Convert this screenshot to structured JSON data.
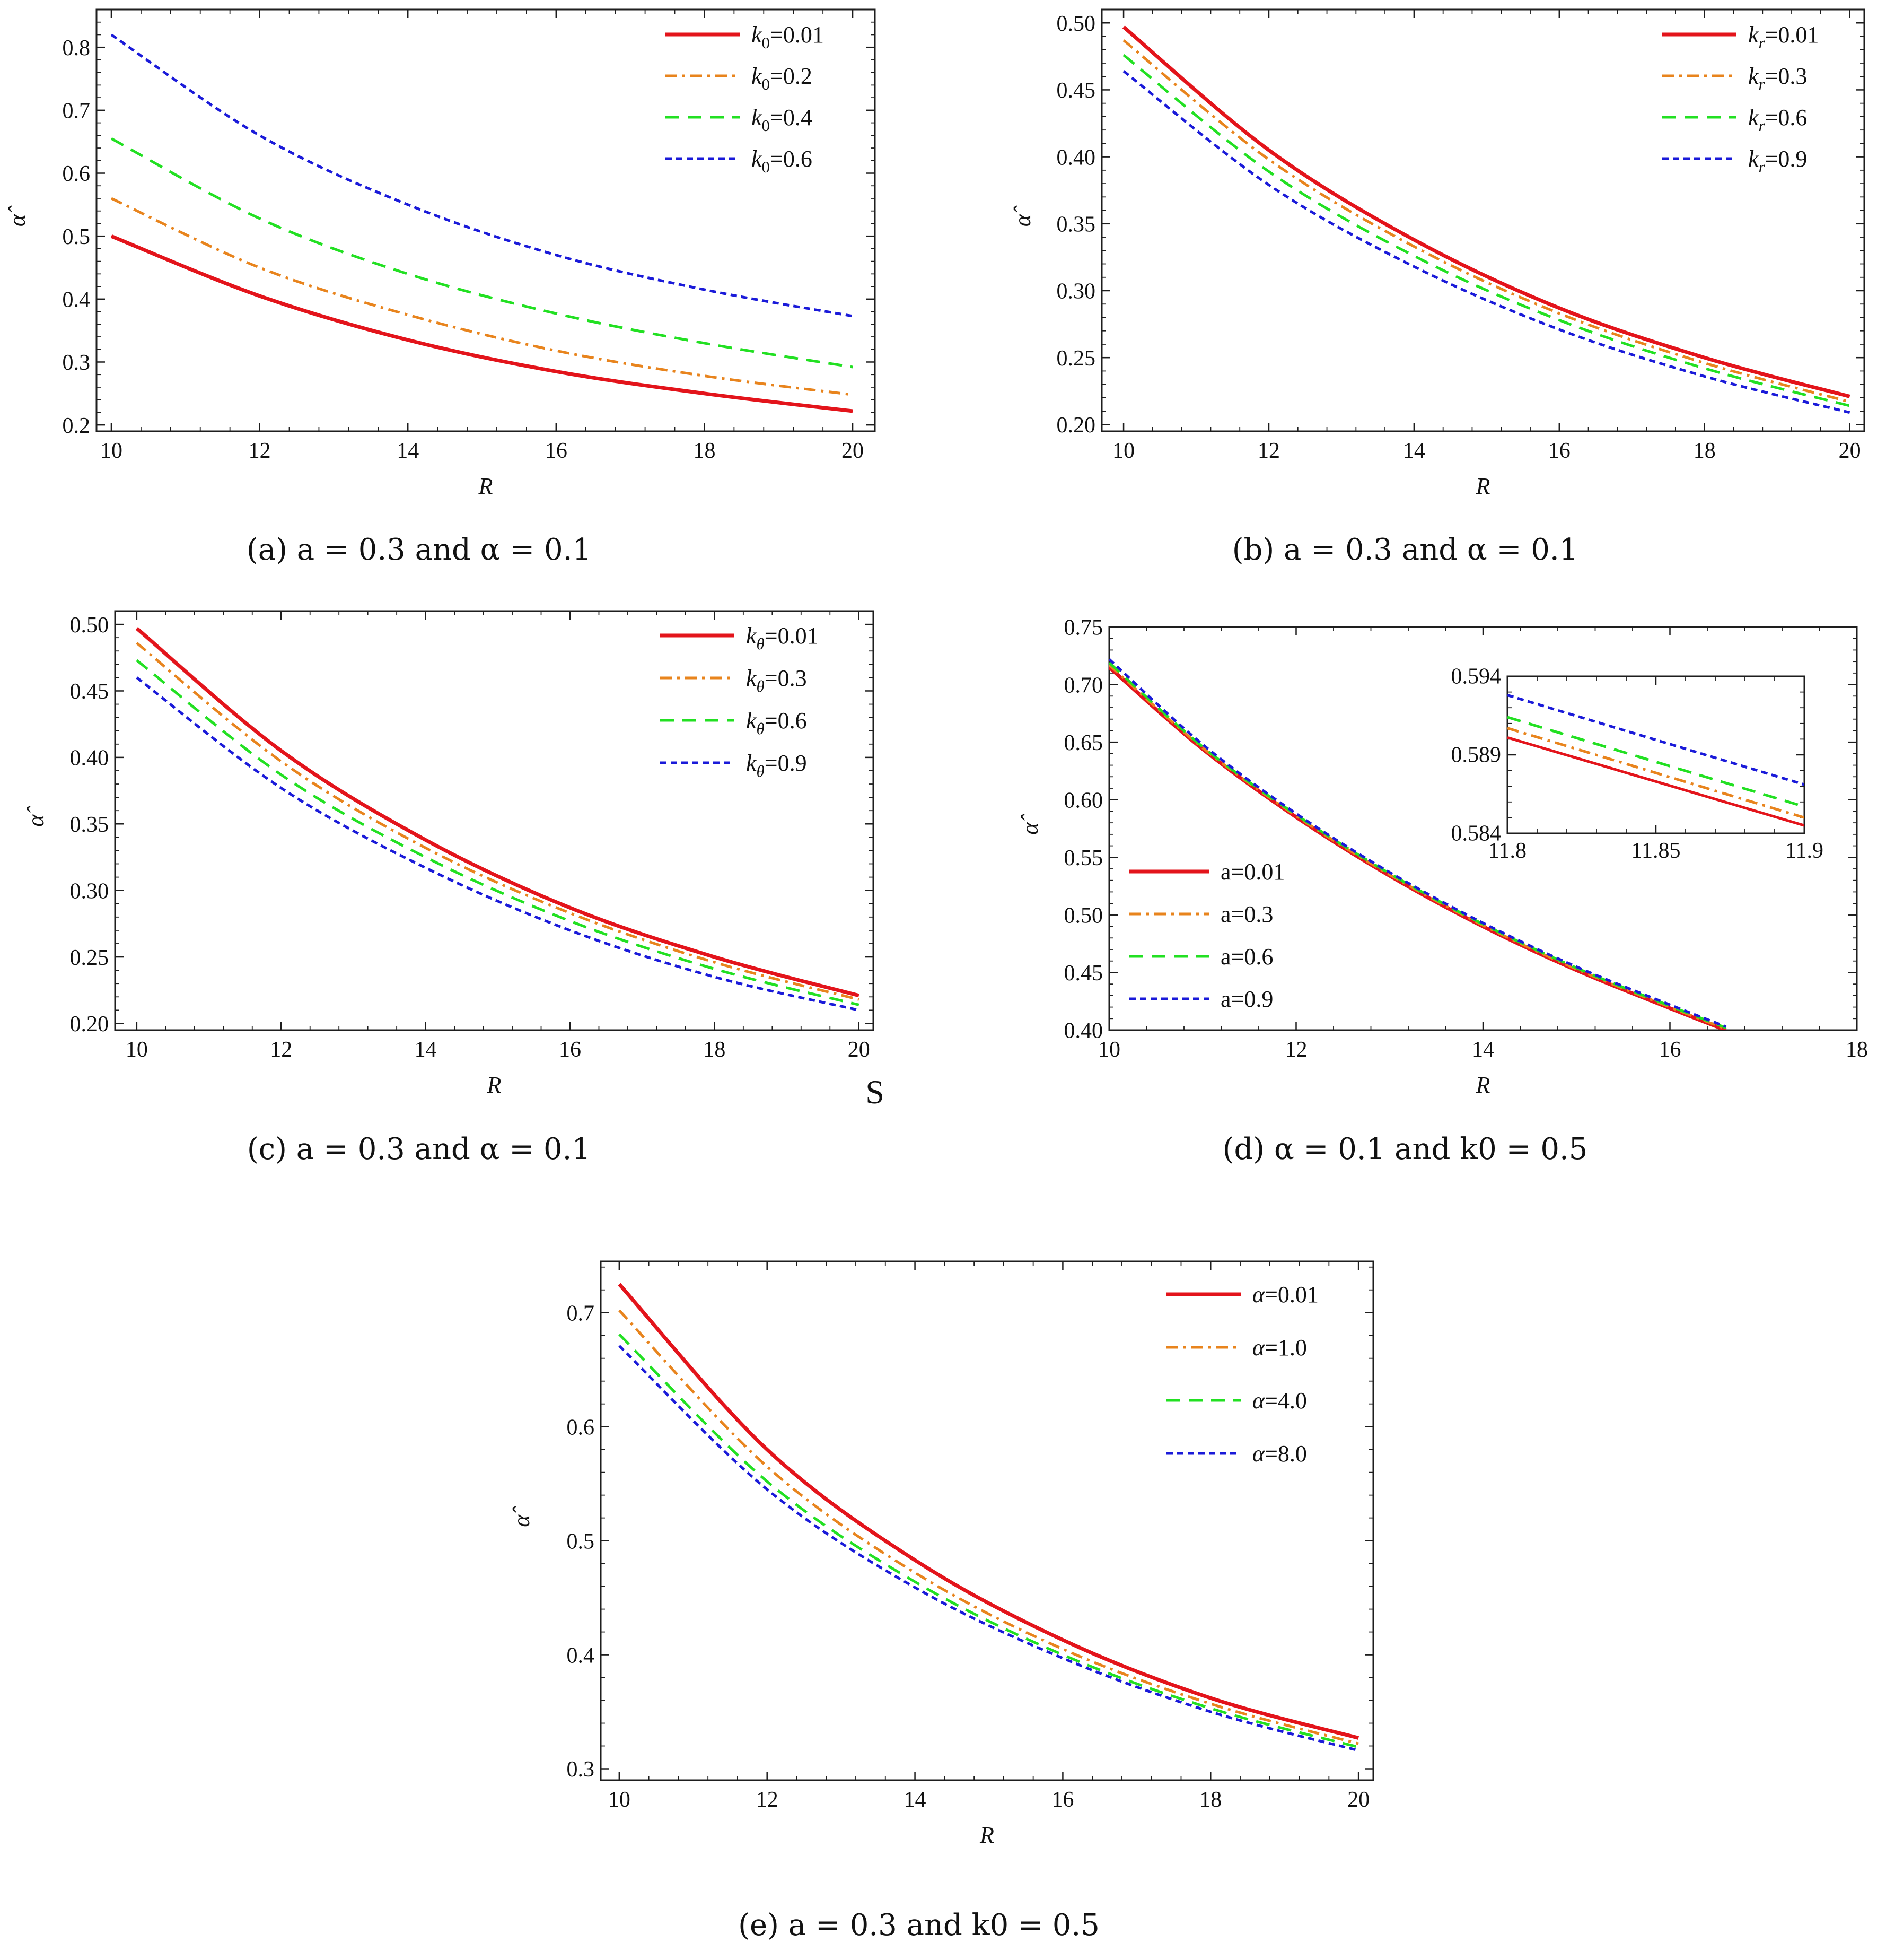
{
  "colors": {
    "red": "#e3141b",
    "orange": "#e8841d",
    "green": "#22e022",
    "blue": "#1a1ad9",
    "axis": "#1e1e1e"
  },
  "stray_text": "S",
  "chart_data": [
    {
      "id": "a",
      "type": "line",
      "caption": "(a) a = 0.3 and α = 0.1",
      "xlabel": "R",
      "ylabel": "α̂",
      "xlim": [
        9.8,
        20.3
      ],
      "ylim": [
        0.19,
        0.86
      ],
      "xticks": [
        10,
        12,
        14,
        16,
        18,
        20
      ],
      "yticks": [
        0.2,
        0.3,
        0.4,
        0.5,
        0.6,
        0.7,
        0.8
      ],
      "ytick_labels": [
        "0.2",
        "0.3",
        "0.4",
        "0.5",
        "0.6",
        "0.7",
        "0.8"
      ],
      "legend_position": "top-right",
      "x": [
        10,
        12,
        14,
        16,
        18,
        20
      ],
      "series": [
        {
          "name": "k0=0.01",
          "label_main": "k",
          "label_sub": "0",
          "label_val": "=0.01",
          "style": "solid",
          "color": "red",
          "values": [
            0.5,
            0.405,
            0.335,
            0.285,
            0.25,
            0.222
          ]
        },
        {
          "name": "k0=0.2",
          "label_main": "k",
          "label_sub": "0",
          "label_val": "=0.2",
          "style": "dashdot",
          "color": "orange",
          "values": [
            0.56,
            0.45,
            0.375,
            0.318,
            0.278,
            0.248
          ]
        },
        {
          "name": "k0=0.4",
          "label_main": "k",
          "label_sub": "0",
          "label_val": "=0.4",
          "style": "dashed",
          "color": "green",
          "values": [
            0.655,
            0.528,
            0.44,
            0.377,
            0.33,
            0.292
          ]
        },
        {
          "name": "k0=0.6",
          "label_main": "k",
          "label_sub": "0",
          "label_val": "=0.6",
          "style": "dotted",
          "color": "blue",
          "values": [
            0.82,
            0.66,
            0.55,
            0.47,
            0.415,
            0.373
          ]
        }
      ]
    },
    {
      "id": "b",
      "type": "line",
      "caption": "(b) a = 0.3 and α = 0.1",
      "xlabel": "R",
      "ylabel": "α̂",
      "xlim": [
        9.7,
        20.2
      ],
      "ylim": [
        0.195,
        0.51
      ],
      "xticks": [
        10,
        12,
        14,
        16,
        18,
        20
      ],
      "yticks": [
        0.2,
        0.25,
        0.3,
        0.35,
        0.4,
        0.45,
        0.5
      ],
      "ytick_labels": [
        "0.20",
        "0.25",
        "0.30",
        "0.35",
        "0.40",
        "0.45",
        "0.50"
      ],
      "legend_position": "top-right",
      "x": [
        10,
        12,
        14,
        16,
        18,
        20
      ],
      "series": [
        {
          "name": "kr=0.01",
          "label_main": "k",
          "label_sub": "r",
          "label_val": "=0.01",
          "style": "solid",
          "color": "red",
          "values": [
            0.497,
            0.405,
            0.338,
            0.287,
            0.25,
            0.221
          ]
        },
        {
          "name": "kr=0.3",
          "label_main": "k",
          "label_sub": "r",
          "label_val": "=0.3",
          "style": "dashdot",
          "color": "orange",
          "values": [
            0.487,
            0.398,
            0.333,
            0.283,
            0.246,
            0.217
          ]
        },
        {
          "name": "kr=0.6",
          "label_main": "k",
          "label_sub": "r",
          "label_val": "=0.6",
          "style": "dashed",
          "color": "green",
          "values": [
            0.476,
            0.389,
            0.326,
            0.278,
            0.242,
            0.214
          ]
        },
        {
          "name": "kr=0.9",
          "label_main": "k",
          "label_sub": "r",
          "label_val": "=0.9",
          "style": "dotted",
          "color": "blue",
          "values": [
            0.464,
            0.379,
            0.318,
            0.271,
            0.236,
            0.209
          ]
        }
      ]
    },
    {
      "id": "c",
      "type": "line",
      "caption": "(c) a = 0.3 and α = 0.1",
      "xlabel": "R",
      "ylabel": "α̂",
      "xlim": [
        9.7,
        20.2
      ],
      "ylim": [
        0.195,
        0.51
      ],
      "xticks": [
        10,
        12,
        14,
        16,
        18,
        20
      ],
      "yticks": [
        0.2,
        0.25,
        0.3,
        0.35,
        0.4,
        0.45,
        0.5
      ],
      "ytick_labels": [
        "0.20",
        "0.25",
        "0.30",
        "0.35",
        "0.40",
        "0.45",
        "0.50"
      ],
      "legend_position": "top-right",
      "x": [
        10,
        12,
        14,
        16,
        18,
        20
      ],
      "series": [
        {
          "name": "kθ=0.01",
          "label_main": "k",
          "label_sub": "θ",
          "label_val": "=0.01",
          "style": "solid",
          "color": "red",
          "values": [
            0.497,
            0.405,
            0.338,
            0.287,
            0.25,
            0.221
          ]
        },
        {
          "name": "kθ=0.3",
          "label_main": "k",
          "label_sub": "θ",
          "label_val": "=0.3",
          "style": "dashdot",
          "color": "orange",
          "values": [
            0.486,
            0.397,
            0.332,
            0.283,
            0.246,
            0.218
          ]
        },
        {
          "name": "kθ=0.6",
          "label_main": "k",
          "label_sub": "θ",
          "label_val": "=0.6",
          "style": "dashed",
          "color": "green",
          "values": [
            0.473,
            0.387,
            0.325,
            0.277,
            0.241,
            0.214
          ]
        },
        {
          "name": "kθ=0.9",
          "label_main": "k",
          "label_sub": "θ",
          "label_val": "=0.9",
          "style": "dotted",
          "color": "blue",
          "values": [
            0.46,
            0.377,
            0.317,
            0.27,
            0.235,
            0.21
          ]
        }
      ]
    },
    {
      "id": "d",
      "type": "line",
      "caption": "(d) α = 0.1 and k0 = 0.5",
      "xlabel": "R",
      "ylabel": "α̂",
      "xlim": [
        10,
        18
      ],
      "ylim": [
        0.4,
        0.75
      ],
      "xticks": [
        10,
        12,
        14,
        16,
        18
      ],
      "yticks": [
        0.4,
        0.45,
        0.5,
        0.55,
        0.6,
        0.65,
        0.7,
        0.75
      ],
      "ytick_labels": [
        "0.40",
        "0.45",
        "0.50",
        "0.55",
        "0.60",
        "0.65",
        "0.70",
        "0.75"
      ],
      "legend_position": "bottom-left",
      "x": [
        10,
        11,
        12,
        13,
        14,
        15,
        16,
        16.6
      ],
      "series": [
        {
          "name": "a=0.01",
          "label_main": "a",
          "label_sub": "",
          "label_val": "=0.01",
          "style": "solid",
          "color": "red",
          "values": [
            0.715,
            0.644,
            0.585,
            0.534,
            0.49,
            0.452,
            0.419,
            0.4
          ]
        },
        {
          "name": "a=0.3",
          "label_main": "a",
          "label_sub": "",
          "label_val": "=0.3",
          "style": "dashdot",
          "color": "orange",
          "values": [
            0.717,
            0.645,
            0.586,
            0.535,
            0.491,
            0.453,
            0.42,
            0.401
          ]
        },
        {
          "name": "a=0.6",
          "label_main": "a",
          "label_sub": "",
          "label_val": "=0.6",
          "style": "dashed",
          "color": "green",
          "values": [
            0.719,
            0.646,
            0.587,
            0.536,
            0.492,
            0.454,
            0.421,
            0.402
          ]
        },
        {
          "name": "a=0.9",
          "label_main": "a",
          "label_sub": "",
          "label_val": "=0.9",
          "style": "dotted",
          "color": "blue",
          "values": [
            0.722,
            0.648,
            0.588,
            0.537,
            0.493,
            0.455,
            0.422,
            0.403
          ]
        }
      ],
      "inset": {
        "xlim": [
          11.8,
          11.9
        ],
        "ylim": [
          0.584,
          0.594
        ],
        "xticks": [
          11.8,
          11.85,
          11.9
        ],
        "xtick_labels": [
          "11.8",
          "11.85",
          "11.9"
        ],
        "yticks": [
          0.584,
          0.589,
          0.594
        ],
        "ytick_labels": [
          "0.584",
          "0.589",
          "0.594"
        ],
        "x": [
          11.8,
          11.9
        ],
        "series": [
          {
            "color": "red",
            "style": "solid",
            "values": [
              0.5901,
              0.5845
            ]
          },
          {
            "color": "orange",
            "style": "dashdot",
            "values": [
              0.5907,
              0.585
            ]
          },
          {
            "color": "green",
            "style": "dashed",
            "values": [
              0.5914,
              0.5857
            ]
          },
          {
            "color": "blue",
            "style": "dotted",
            "values": [
              0.5928,
              0.5871
            ]
          }
        ]
      }
    },
    {
      "id": "e",
      "type": "line",
      "caption": "(e) a = 0.3 and k0 = 0.5",
      "xlabel": "R",
      "ylabel": "α̂",
      "xlim": [
        9.75,
        20.2
      ],
      "ylim": [
        0.29,
        0.745
      ],
      "xticks": [
        10,
        12,
        14,
        16,
        18,
        20
      ],
      "yticks": [
        0.3,
        0.4,
        0.5,
        0.6,
        0.7
      ],
      "ytick_labels": [
        "0.3",
        "0.4",
        "0.5",
        "0.6",
        "0.7"
      ],
      "legend_position": "top-right",
      "x": [
        10,
        12,
        14,
        16,
        18,
        20
      ],
      "series": [
        {
          "name": "α=0.01",
          "label_main": "α",
          "label_sub": "",
          "label_val": "=0.01",
          "style": "solid",
          "color": "red",
          "values": [
            0.725,
            0.58,
            0.483,
            0.413,
            0.362,
            0.327
          ]
        },
        {
          "name": "α=1.0",
          "label_main": "α",
          "label_sub": "",
          "label_val": "=1.0",
          "style": "dashdot",
          "color": "orange",
          "values": [
            0.702,
            0.565,
            0.472,
            0.405,
            0.357,
            0.322
          ]
        },
        {
          "name": "α=4.0",
          "label_main": "α",
          "label_sub": "",
          "label_val": "=4.0",
          "style": "dashed",
          "color": "green",
          "values": [
            0.681,
            0.552,
            0.464,
            0.4,
            0.353,
            0.319
          ]
        },
        {
          "name": "α=8.0",
          "label_main": "α",
          "label_sub": "",
          "label_val": "=8.0",
          "style": "dotted",
          "color": "blue",
          "values": [
            0.671,
            0.545,
            0.459,
            0.397,
            0.35,
            0.316
          ]
        }
      ]
    }
  ]
}
